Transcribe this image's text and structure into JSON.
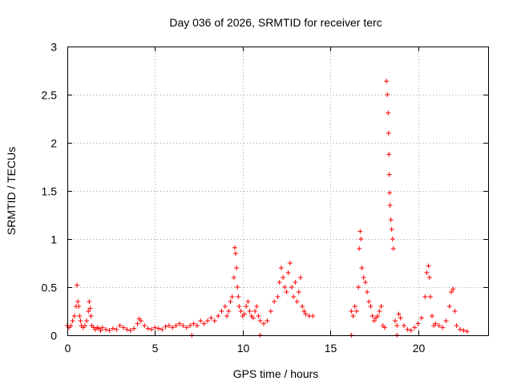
{
  "chart_data": {
    "type": "scatter",
    "title": "Day 036 of 2026, SRMTID for receiver terc",
    "xlabel": "GPS time / hours",
    "ylabel": "SRMTID / TECUs",
    "xlim": [
      0,
      24
    ],
    "ylim": [
      0,
      3
    ],
    "x_ticks": [
      0,
      5,
      10,
      15,
      20
    ],
    "x_tick_labels": [
      "0",
      "5",
      "10",
      "15",
      "20"
    ],
    "y_ticks": [
      0,
      0.5,
      1,
      1.5,
      2,
      2.5,
      3
    ],
    "y_tick_labels": [
      "0",
      "0.5",
      "1",
      "1.5",
      "2",
      "2.5",
      "3"
    ],
    "grid": true,
    "marker": "+",
    "color": "#ff0000",
    "series": [
      {
        "name": "SRMTID",
        "x": [
          0.0,
          0.1,
          0.2,
          0.3,
          0.4,
          0.5,
          0.55,
          0.6,
          0.65,
          0.7,
          0.75,
          0.8,
          0.9,
          1.0,
          1.1,
          1.2,
          1.25,
          1.3,
          1.35,
          1.4,
          1.5,
          1.6,
          1.7,
          1.8,
          1.9,
          2.0,
          2.2,
          2.4,
          2.6,
          2.8,
          3.0,
          3.2,
          3.4,
          3.6,
          3.8,
          4.0,
          4.1,
          4.2,
          4.4,
          4.6,
          4.8,
          5.0,
          5.2,
          5.4,
          5.6,
          5.8,
          6.0,
          6.2,
          6.4,
          6.6,
          6.8,
          7.0,
          7.2,
          7.4,
          7.6,
          7.8,
          8.0,
          8.2,
          8.4,
          8.6,
          8.8,
          9.0,
          9.1,
          9.2,
          9.3,
          9.4,
          9.5,
          9.55,
          9.6,
          9.65,
          9.7,
          9.75,
          9.8,
          9.9,
          10.0,
          10.1,
          10.2,
          10.3,
          10.4,
          10.5,
          10.6,
          10.7,
          10.8,
          10.9,
          11.0,
          11.2,
          11.4,
          11.6,
          11.8,
          12.0,
          12.1,
          12.2,
          12.3,
          12.4,
          12.5,
          12.6,
          12.7,
          12.8,
          12.9,
          13.0,
          13.1,
          13.2,
          13.3,
          13.4,
          13.5,
          13.6,
          13.8,
          14.0,
          16.2,
          16.3,
          16.4,
          16.5,
          16.6,
          16.65,
          16.7,
          16.75,
          16.8,
          16.9,
          17.0,
          17.1,
          17.2,
          17.3,
          17.4,
          17.5,
          17.6,
          17.7,
          17.8,
          17.9,
          18.0,
          18.1,
          18.2,
          18.25,
          18.3,
          18.32,
          18.34,
          18.36,
          18.38,
          18.4,
          18.45,
          18.5,
          18.55,
          18.6,
          18.7,
          18.8,
          18.9,
          19.0,
          19.2,
          19.4,
          19.6,
          19.8,
          20.0,
          20.2,
          20.4,
          20.5,
          20.6,
          20.65,
          20.7,
          20.8,
          20.9,
          21.0,
          21.2,
          21.4,
          21.6,
          21.8,
          21.9,
          22.0,
          22.1,
          22.2,
          22.4,
          22.6,
          22.8,
          7.1,
          11.0,
          16.2,
          18.8
        ],
        "y": [
          0.1,
          0.08,
          0.1,
          0.15,
          0.2,
          0.3,
          0.52,
          0.35,
          0.3,
          0.2,
          0.15,
          0.1,
          0.08,
          0.1,
          0.15,
          0.25,
          0.35,
          0.28,
          0.2,
          0.1,
          0.08,
          0.06,
          0.08,
          0.07,
          0.05,
          0.08,
          0.06,
          0.05,
          0.07,
          0.06,
          0.1,
          0.08,
          0.06,
          0.05,
          0.07,
          0.12,
          0.17,
          0.15,
          0.1,
          0.07,
          0.06,
          0.08,
          0.07,
          0.06,
          0.09,
          0.1,
          0.08,
          0.1,
          0.12,
          0.1,
          0.08,
          0.1,
          0.12,
          0.1,
          0.15,
          0.12,
          0.15,
          0.18,
          0.15,
          0.2,
          0.25,
          0.3,
          0.2,
          0.25,
          0.35,
          0.4,
          0.6,
          0.91,
          0.85,
          0.7,
          0.5,
          0.4,
          0.3,
          0.25,
          0.2,
          0.22,
          0.3,
          0.35,
          0.25,
          0.2,
          0.18,
          0.25,
          0.3,
          0.2,
          0.15,
          0.12,
          0.15,
          0.25,
          0.35,
          0.4,
          0.55,
          0.7,
          0.6,
          0.5,
          0.45,
          0.65,
          0.75,
          0.5,
          0.4,
          0.55,
          0.35,
          0.45,
          0.6,
          0.3,
          0.25,
          0.22,
          0.2,
          0.2,
          0.25,
          0.2,
          0.3,
          0.25,
          0.5,
          0.9,
          1.08,
          1.0,
          0.7,
          0.6,
          0.55,
          0.45,
          0.35,
          0.3,
          0.2,
          0.15,
          0.18,
          0.2,
          0.25,
          0.3,
          0.1,
          0.08,
          2.64,
          2.5,
          2.31,
          2.1,
          1.88,
          1.67,
          1.48,
          1.35,
          1.2,
          1.1,
          1.0,
          0.9,
          0.15,
          0.1,
          0.22,
          0.18,
          0.1,
          0.06,
          0.05,
          0.08,
          0.12,
          0.18,
          0.4,
          0.65,
          0.72,
          0.6,
          0.4,
          0.2,
          0.1,
          0.12,
          0.1,
          0.08,
          0.15,
          0.3,
          0.45,
          0.48,
          0.25,
          0.1,
          0.06,
          0.05,
          0.04,
          0.0,
          0.0,
          0.0,
          0.0
        ]
      }
    ]
  }
}
